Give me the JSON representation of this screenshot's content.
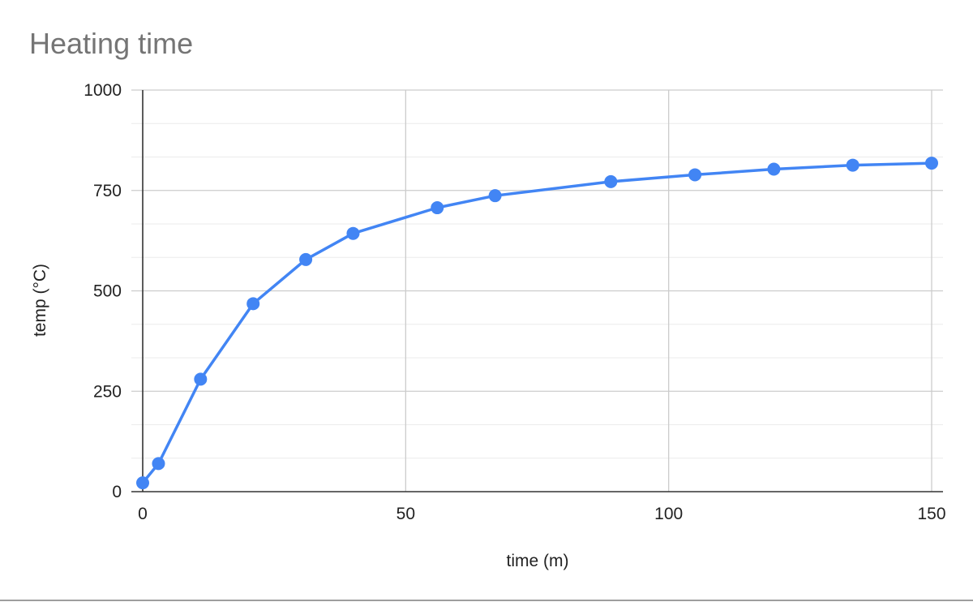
{
  "chart_data": {
    "type": "line",
    "title": "Heating time",
    "xlabel": "time (m)",
    "ylabel": "temp (°C)",
    "xlim": [
      0,
      150
    ],
    "ylim": [
      0,
      1000
    ],
    "x_ticks": [
      0,
      50,
      100,
      150
    ],
    "y_ticks": [
      0,
      250,
      500,
      750,
      1000
    ],
    "x_tick_labels": [
      "0",
      "50",
      "100",
      "150"
    ],
    "y_tick_labels": [
      "0",
      "250",
      "500",
      "750",
      "1000"
    ],
    "y_minor_step": 83.33,
    "grid": true,
    "legend": "none",
    "series": [
      {
        "color": "#4285f4",
        "markers": true,
        "x": [
          0,
          3,
          11,
          21,
          31,
          40,
          56,
          67,
          89,
          105,
          120,
          135,
          150
        ],
        "y": [
          22,
          70,
          280,
          468,
          578,
          643,
          707,
          737,
          772,
          789,
          803,
          813,
          818
        ]
      }
    ]
  }
}
